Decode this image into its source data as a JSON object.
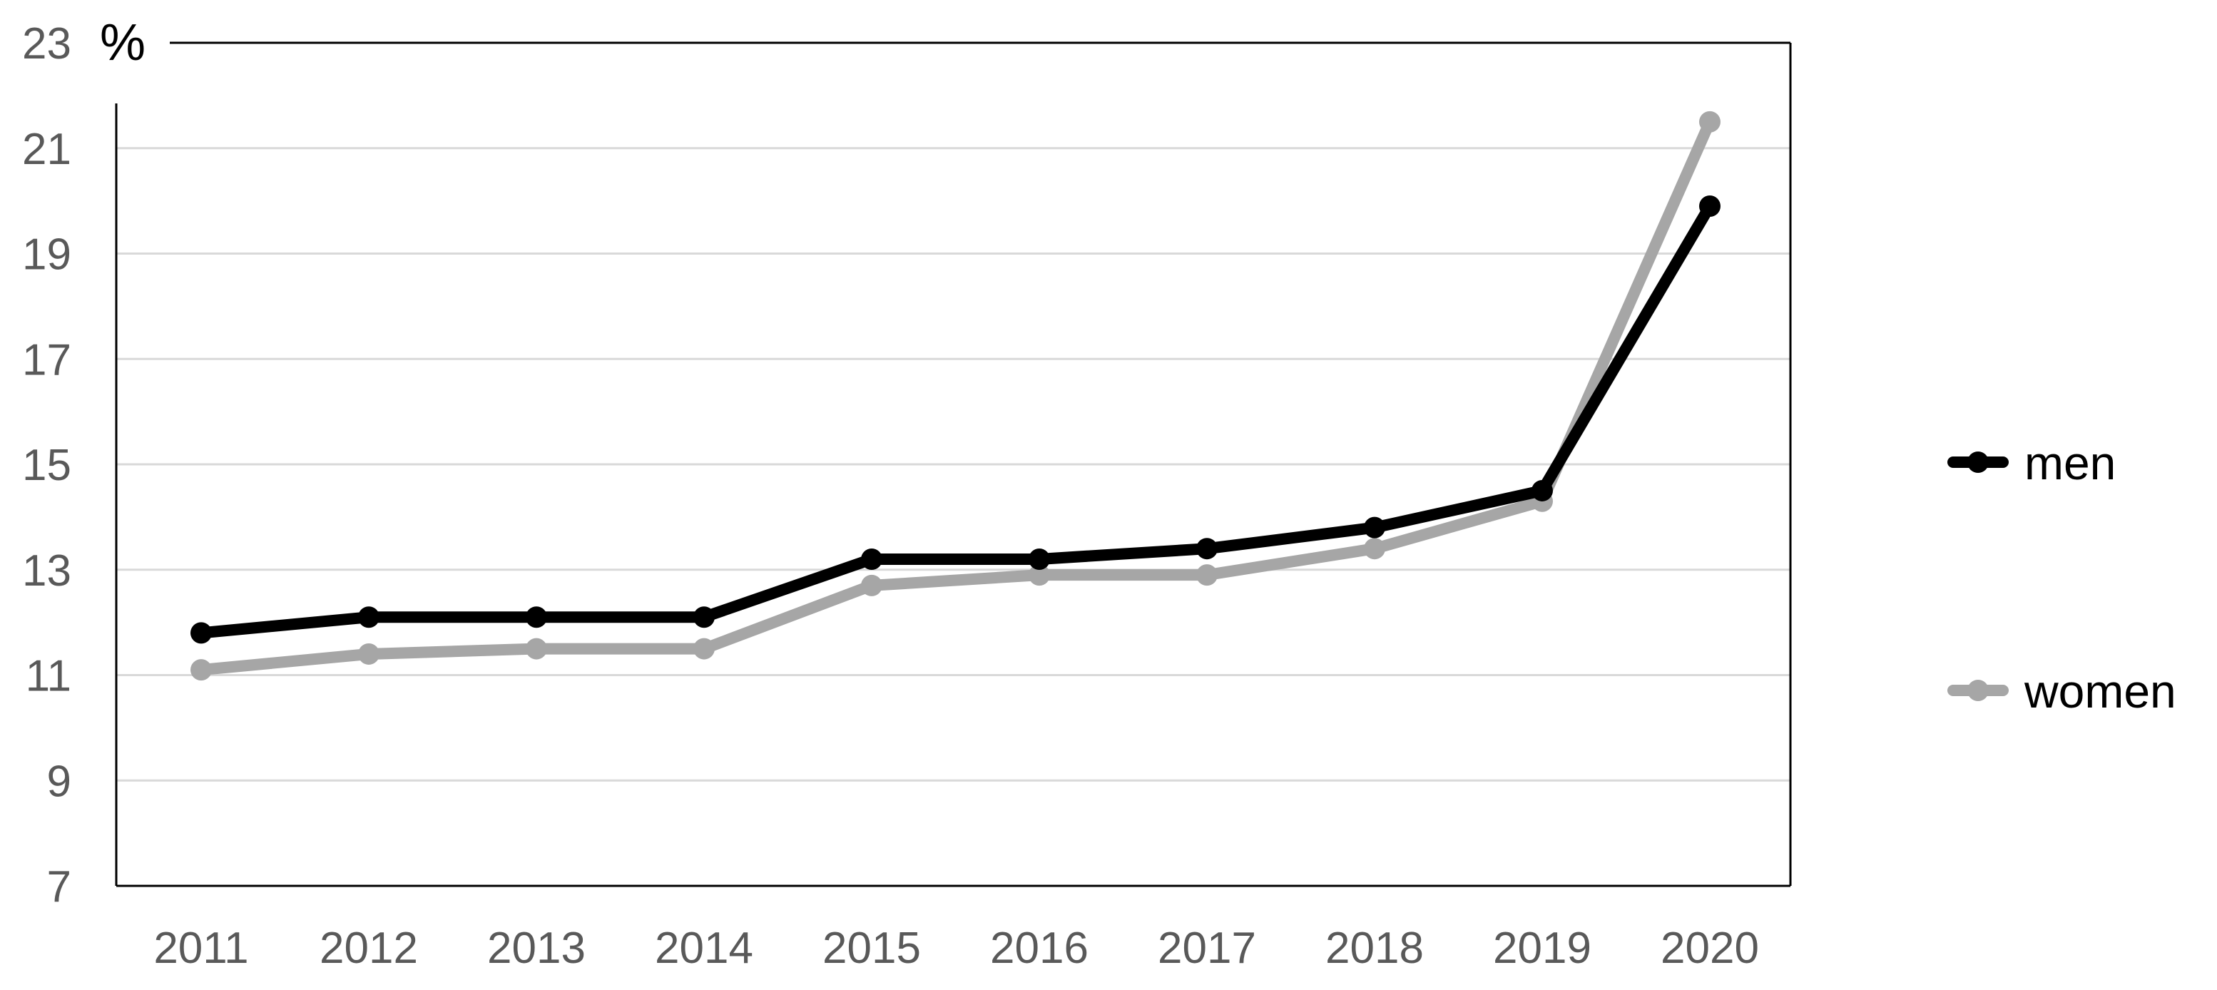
{
  "chart_data": {
    "type": "line",
    "unit_label": "%",
    "categories": [
      "2011",
      "2012",
      "2013",
      "2014",
      "2015",
      "2016",
      "2017",
      "2018",
      "2019",
      "2020"
    ],
    "y_ticks": [
      "7",
      "9",
      "11",
      "13",
      "15",
      "17",
      "19",
      "21",
      "23"
    ],
    "ylim": [
      7,
      23
    ],
    "grid": true,
    "legend_position": "right",
    "series": [
      {
        "name": "men",
        "color": "#000000",
        "values": [
          11.8,
          12.1,
          12.1,
          12.1,
          13.2,
          13.2,
          13.4,
          13.8,
          14.5,
          19.9
        ]
      },
      {
        "name": "women",
        "color": "#a6a6a6",
        "values": [
          11.1,
          11.4,
          11.5,
          11.5,
          12.7,
          12.9,
          12.9,
          13.4,
          14.3,
          21.5
        ]
      }
    ]
  }
}
